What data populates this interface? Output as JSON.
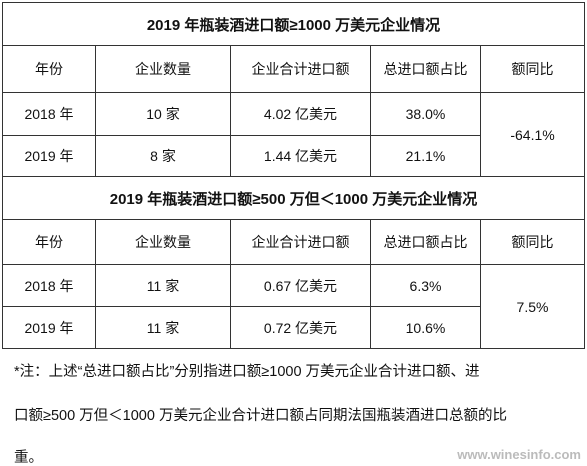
{
  "tables": [
    {
      "title": "2019 年瓶装酒进口额≥1000 万美元企业情况",
      "headers": [
        "年份",
        "企业数量",
        "企业合计进口额",
        "总进口额占比",
        "额同比"
      ],
      "rows": [
        [
          "2018 年",
          "10 家",
          "4.02 亿美元",
          "38.0%"
        ],
        [
          "2019 年",
          "8 家",
          "1.44 亿美元",
          "21.1%"
        ]
      ],
      "yoy": "-64.1%"
    },
    {
      "title": "2019 年瓶装酒进口额≥500 万但＜1000 万美元企业情况",
      "headers": [
        "年份",
        "企业数量",
        "企业合计进口额",
        "总进口额占比",
        "额同比"
      ],
      "rows": [
        [
          "2018 年",
          "11 家",
          "0.67 亿美元",
          "6.3%"
        ],
        [
          "2019 年",
          "11 家",
          "0.72 亿美元",
          "10.6%"
        ]
      ],
      "yoy": "7.5%"
    }
  ],
  "note": {
    "lines": [
      "*注：上述“总进口额占比”分别指进口额≥1000 万美元企业合计进口额、进",
      "口额≥500 万但＜1000 万美元企业合计进口额占同期法国瓶装酒进口总额的比",
      "重。"
    ]
  },
  "watermark": "www.winesinfo.com"
}
